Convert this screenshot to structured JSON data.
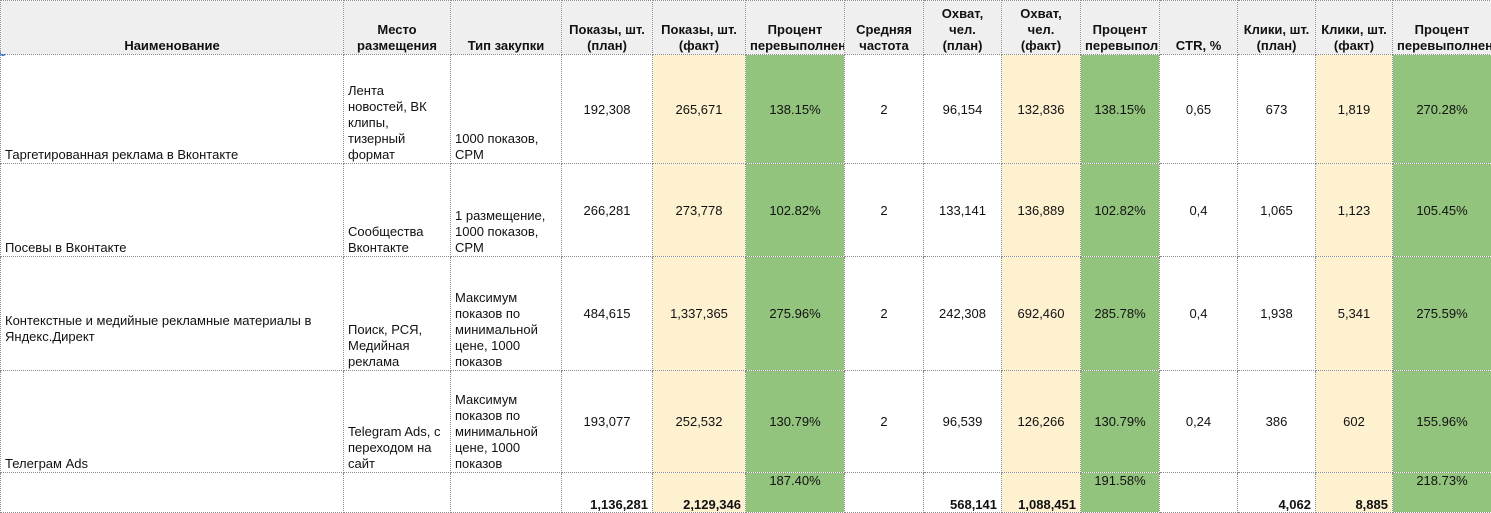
{
  "colors": {
    "header_bg": "#efefef",
    "fact_bg": "#fdf1cf",
    "percent_bg": "#93c47d",
    "border": "#8a8a8a",
    "selection": "#1a73e8"
  },
  "headers": {
    "name": "Наименование",
    "placement": "Место размещения",
    "purchase_type": "Тип закупки",
    "impressions_plan": "Показы, шт. (план)",
    "impressions_fact": "Показы, шт. (факт)",
    "impressions_pct": "Процент перевыполнения",
    "avg_frequency": "Средняя частота",
    "reach_plan": "Охват, чел. (план)",
    "reach_fact": "Охват, чел. (факт)",
    "reach_pct": "Процент перевыполнения",
    "ctr": "CTR, %",
    "clicks_plan": "Клики, шт. (план)",
    "clicks_fact": "Клики, шт. (факт)",
    "clicks_pct": "Процент перевыполнения"
  },
  "rows": [
    {
      "name": "Таргетированная реклама в Вконтакте",
      "placement": "Лента новостей, ВК клипы, тизерный формат",
      "purchase_type": "1000 показов, CPM",
      "impressions_plan": "192,308",
      "impressions_fact": "265,671",
      "impressions_pct": "138.15%",
      "avg_frequency": "2",
      "reach_plan": "96,154",
      "reach_fact": "132,836",
      "reach_pct": "138.15%",
      "ctr": "0,65",
      "clicks_plan": "673",
      "clicks_fact": "1,819",
      "clicks_pct": "270.28%"
    },
    {
      "name": "Посевы в Вконтакте",
      "placement": "Сообщества Вконтакте",
      "purchase_type": "1 размещение, 1000 показов, CPM",
      "impressions_plan": "266,281",
      "impressions_fact": "273,778",
      "impressions_pct": "102.82%",
      "avg_frequency": "2",
      "reach_plan": "133,141",
      "reach_fact": "136,889",
      "reach_pct": "102.82%",
      "ctr": "0,4",
      "clicks_plan": "1,065",
      "clicks_fact": "1,123",
      "clicks_pct": "105.45%"
    },
    {
      "name": "Контекстные и медийные рекламные материалы в Яндекс.Директ",
      "placement": "Поиск, РСЯ, Медийная реклама",
      "purchase_type": "Максимум показов по минимальной цене, 1000 показов",
      "impressions_plan": "484,615",
      "impressions_fact": "1,337,365",
      "impressions_pct": "275.96%",
      "avg_frequency": "2",
      "reach_plan": "242,308",
      "reach_fact": "692,460",
      "reach_pct": "285.78%",
      "ctr": "0,4",
      "clicks_plan": "1,938",
      "clicks_fact": "5,341",
      "clicks_pct": "275.59%"
    },
    {
      "name": "Телеграм Ads",
      "placement": "Telegram Ads, с переходом на сайт",
      "purchase_type": "Максимум показов по минимальной цене, 1000 показов",
      "impressions_plan": "193,077",
      "impressions_fact": "252,532",
      "impressions_pct": "130.79%",
      "avg_frequency": "2",
      "reach_plan": "96,539",
      "reach_fact": "126,266",
      "reach_pct": "130.79%",
      "ctr": "0,24",
      "clicks_plan": "386",
      "clicks_fact": "602",
      "clicks_pct": "155.96%"
    }
  ],
  "totals": {
    "impressions_plan": "1,136,281",
    "impressions_fact": "2,129,346",
    "impressions_pct": "187.40%",
    "reach_plan": "568,141",
    "reach_fact": "1,088,451",
    "reach_pct": "191.58%",
    "clicks_plan": "4,062",
    "clicks_fact": "8,885",
    "clicks_pct": "218.73%"
  }
}
